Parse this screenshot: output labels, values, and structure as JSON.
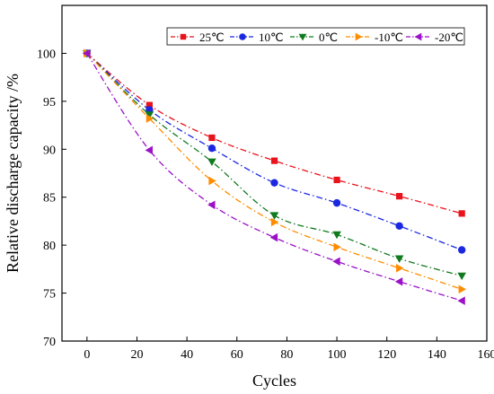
{
  "chart_data": {
    "type": "line",
    "title": "",
    "xlabel": "Cycles",
    "ylabel": "Relative discharge capacity /%",
    "xlim": [
      -10,
      160
    ],
    "ylim": [
      70,
      105
    ],
    "xticks": [
      0,
      20,
      40,
      60,
      80,
      100,
      120,
      140,
      160
    ],
    "yticks": [
      70,
      75,
      80,
      85,
      90,
      95,
      100
    ],
    "legend_position": "top-right",
    "grid": false,
    "x": [
      0,
      25,
      50,
      75,
      100,
      125,
      150
    ],
    "series": [
      {
        "name": "25℃",
        "color": "#e8131b",
        "marker": "square",
        "values": [
          100,
          94.6,
          91.2,
          88.8,
          86.8,
          85.1,
          83.3
        ]
      },
      {
        "name": "10℃",
        "color": "#1b28e0",
        "marker": "circle",
        "values": [
          100,
          94.1,
          90.1,
          86.5,
          84.4,
          82.0,
          79.5
        ]
      },
      {
        "name": "0℃",
        "color": "#0f7a1e",
        "marker": "triangle-down",
        "values": [
          100,
          93.6,
          88.7,
          83.1,
          81.1,
          78.6,
          76.8
        ]
      },
      {
        "name": "-10℃",
        "color": "#ff8c00",
        "marker": "triangle-right",
        "values": [
          100,
          93.2,
          86.7,
          82.4,
          79.8,
          77.6,
          75.4
        ]
      },
      {
        "name": "-20℃",
        "color": "#9b11c8",
        "marker": "triangle-left",
        "values": [
          100,
          89.9,
          84.2,
          80.8,
          78.3,
          76.2,
          74.2
        ]
      }
    ]
  }
}
